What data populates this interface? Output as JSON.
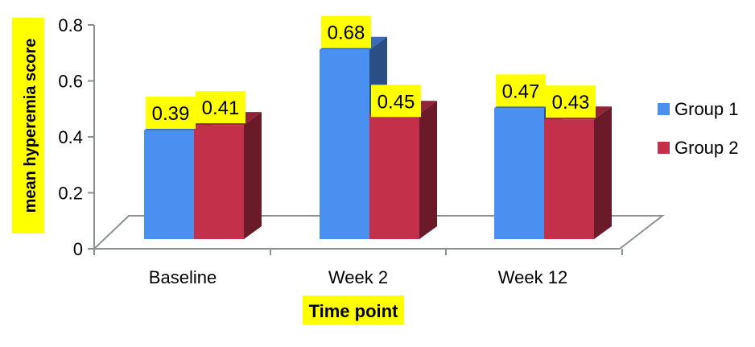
{
  "chart_data": {
    "type": "bar",
    "style": "3d-clustered-column",
    "categories": [
      "Baseline",
      "Week 2",
      "Week 12"
    ],
    "series": [
      {
        "name": "Group 1",
        "values": [
          0.39,
          0.68,
          0.47
        ],
        "color": "#4a90f0"
      },
      {
        "name": "Group 2",
        "values": [
          0.41,
          0.45,
          0.43
        ],
        "color": "#c3304a"
      }
    ],
    "data_labels": [
      [
        "0.39",
        "0.68",
        "0.47"
      ],
      [
        "0.41",
        "0.45",
        "0.43"
      ]
    ],
    "xlabel": "Time point",
    "ylabel": "mean hyperemia score",
    "ylim": [
      0,
      0.8
    ],
    "yticks": [
      "0",
      "0.2",
      "0.4",
      "0.6",
      "0.8"
    ],
    "ytick_values": [
      0,
      0.2,
      0.4,
      0.6,
      0.8
    ],
    "grid": false,
    "legend_position": "right",
    "label_highlight_color": "#ffff00"
  }
}
